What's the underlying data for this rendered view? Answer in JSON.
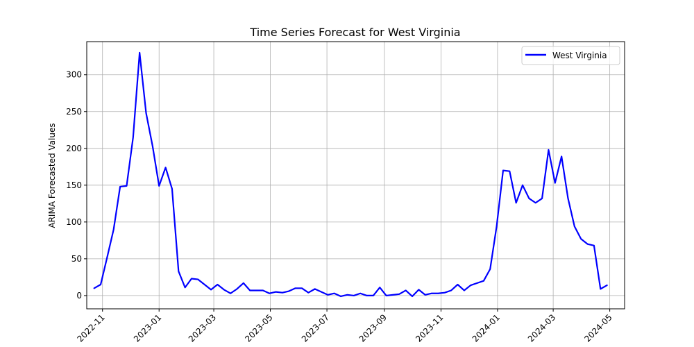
{
  "chart_data": {
    "type": "line",
    "title": "Time Series Forecast for West Virginia",
    "xlabel": "",
    "ylabel": "ARIMA Forecasted Values",
    "ylim": [
      -18,
      345
    ],
    "xlim": [
      "2022-10-15",
      "2024-05-17"
    ],
    "y_ticks": [
      0,
      50,
      100,
      150,
      200,
      250,
      300
    ],
    "x_ticks": [
      "2022-11",
      "2023-01",
      "2023-03",
      "2023-05",
      "2023-07",
      "2023-09",
      "2023-11",
      "2024-01",
      "2024-03",
      "2024-05"
    ],
    "grid": true,
    "legend_position": "upper right",
    "series": [
      {
        "name": "West Virginia",
        "color": "#0000ff",
        "points": [
          [
            "2022-10-23",
            10
          ],
          [
            "2022-10-30",
            15
          ],
          [
            "2022-11-06",
            52
          ],
          [
            "2022-11-13",
            90
          ],
          [
            "2022-11-20",
            148
          ],
          [
            "2022-11-27",
            149
          ],
          [
            "2022-12-04",
            215
          ],
          [
            "2022-12-11",
            330
          ],
          [
            "2022-12-18",
            248
          ],
          [
            "2022-12-25",
            203
          ],
          [
            "2023-01-01",
            149
          ],
          [
            "2023-01-08",
            174
          ],
          [
            "2023-01-15",
            145
          ],
          [
            "2023-01-22",
            33
          ],
          [
            "2023-01-29",
            11
          ],
          [
            "2023-02-05",
            23
          ],
          [
            "2023-02-12",
            22
          ],
          [
            "2023-02-19",
            15
          ],
          [
            "2023-02-26",
            8
          ],
          [
            "2023-03-05",
            15
          ],
          [
            "2023-03-12",
            8
          ],
          [
            "2023-03-19",
            3
          ],
          [
            "2023-03-26",
            9
          ],
          [
            "2023-04-02",
            17
          ],
          [
            "2023-04-09",
            7
          ],
          [
            "2023-04-16",
            7
          ],
          [
            "2023-04-23",
            7
          ],
          [
            "2023-04-30",
            3
          ],
          [
            "2023-05-07",
            5
          ],
          [
            "2023-05-14",
            4
          ],
          [
            "2023-05-21",
            6
          ],
          [
            "2023-05-28",
            10
          ],
          [
            "2023-06-04",
            10
          ],
          [
            "2023-06-11",
            4
          ],
          [
            "2023-06-18",
            9
          ],
          [
            "2023-06-25",
            5
          ],
          [
            "2023-07-02",
            1
          ],
          [
            "2023-07-09",
            3
          ],
          [
            "2023-07-16",
            -1
          ],
          [
            "2023-07-23",
            1
          ],
          [
            "2023-07-30",
            0
          ],
          [
            "2023-08-06",
            3
          ],
          [
            "2023-08-13",
            0
          ],
          [
            "2023-08-20",
            0
          ],
          [
            "2023-08-27",
            11
          ],
          [
            "2023-09-03",
            0
          ],
          [
            "2023-09-10",
            1
          ],
          [
            "2023-09-17",
            2
          ],
          [
            "2023-09-24",
            7
          ],
          [
            "2023-10-01",
            -1
          ],
          [
            "2023-10-08",
            8
          ],
          [
            "2023-10-15",
            1
          ],
          [
            "2023-10-22",
            3
          ],
          [
            "2023-10-29",
            3
          ],
          [
            "2023-11-05",
            4
          ],
          [
            "2023-11-12",
            7
          ],
          [
            "2023-11-19",
            15
          ],
          [
            "2023-11-26",
            7
          ],
          [
            "2023-12-03",
            14
          ],
          [
            "2023-12-10",
            17
          ],
          [
            "2023-12-17",
            20
          ],
          [
            "2023-12-24",
            36
          ],
          [
            "2023-12-31",
            94
          ],
          [
            "2024-01-07",
            170
          ],
          [
            "2024-01-14",
            169
          ],
          [
            "2024-01-21",
            126
          ],
          [
            "2024-01-28",
            150
          ],
          [
            "2024-02-04",
            132
          ],
          [
            "2024-02-11",
            126
          ],
          [
            "2024-02-18",
            132
          ],
          [
            "2024-02-25",
            198
          ],
          [
            "2024-03-03",
            153
          ],
          [
            "2024-03-10",
            189
          ],
          [
            "2024-03-17",
            132
          ],
          [
            "2024-03-24",
            94
          ],
          [
            "2024-03-31",
            77
          ],
          [
            "2024-04-07",
            70
          ],
          [
            "2024-04-14",
            68
          ],
          [
            "2024-04-21",
            9
          ],
          [
            "2024-04-28",
            14
          ]
        ]
      }
    ]
  }
}
